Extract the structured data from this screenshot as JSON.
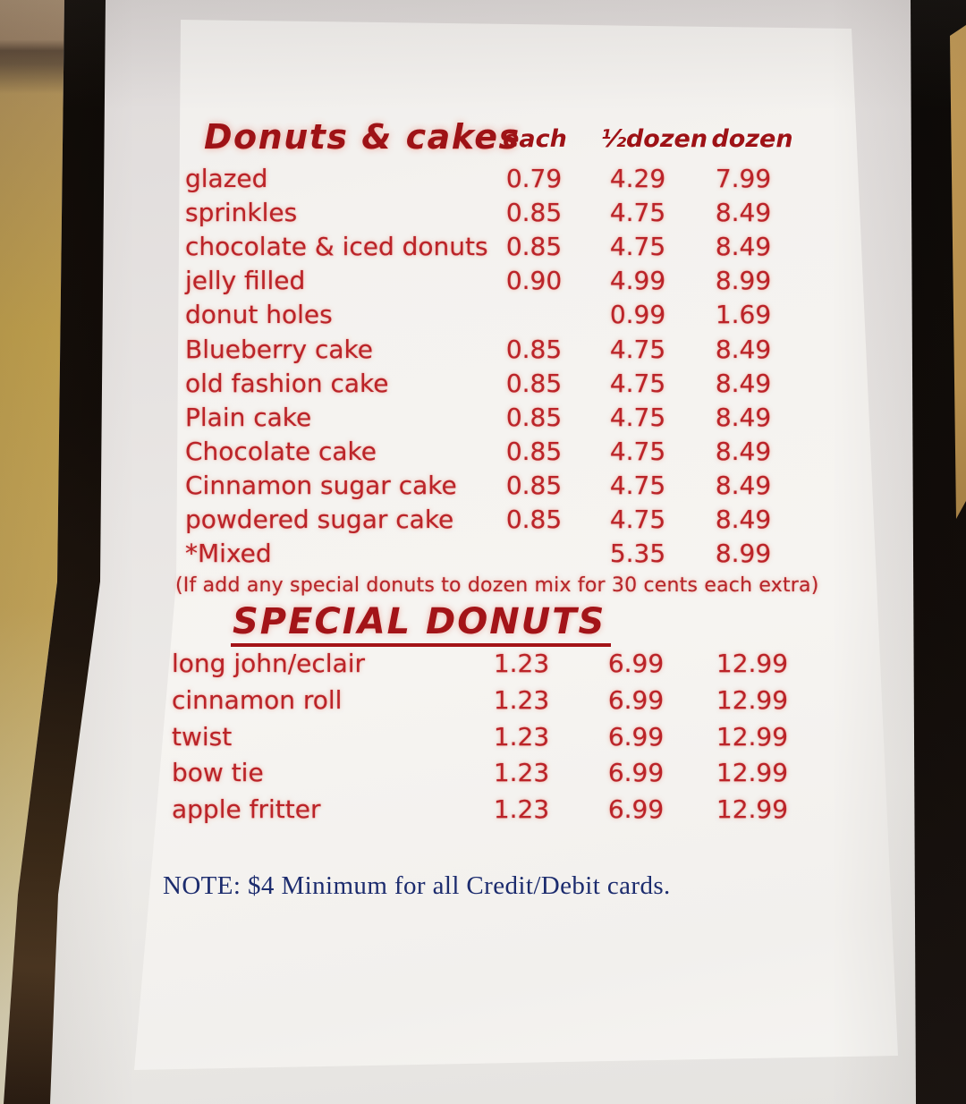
{
  "colors": {
    "menu_red": "#bb2328",
    "heading_red": "#9e1216",
    "note_blue": "#1c2c6e",
    "frame_dark": "#120c08",
    "wall_tan": "#c2a24e",
    "paper_white": "#f5f3f0"
  },
  "menu": {
    "title": "Donuts & cakes",
    "columns": [
      "each",
      "½dozen",
      "dozen"
    ],
    "items": [
      {
        "label": "glazed",
        "each": "0.79",
        "half_dozen": "4.29",
        "dozen": "7.99"
      },
      {
        "label": "sprinkles",
        "each": "0.85",
        "half_dozen": "4.75",
        "dozen": "8.49"
      },
      {
        "label": "chocolate & iced donuts",
        "each": "0.85",
        "half_dozen": "4.75",
        "dozen": "8.49"
      },
      {
        "label": "jelly filled",
        "each": "0.90",
        "half_dozen": "4.99",
        "dozen": "8.99"
      },
      {
        "label": "donut holes",
        "each": "",
        "half_dozen": "0.99",
        "dozen": "1.69"
      },
      {
        "label": "Blueberry cake",
        "each": "0.85",
        "half_dozen": "4.75",
        "dozen": "8.49"
      },
      {
        "label": "old fashion cake",
        "each": "0.85",
        "half_dozen": "4.75",
        "dozen": "8.49"
      },
      {
        "label": "Plain cake",
        "each": "0.85",
        "half_dozen": "4.75",
        "dozen": "8.49"
      },
      {
        "label": "Chocolate cake",
        "each": "0.85",
        "half_dozen": "4.75",
        "dozen": "8.49"
      },
      {
        "label": "Cinnamon sugar cake",
        "each": "0.85",
        "half_dozen": "4.75",
        "dozen": "8.49"
      },
      {
        "label": "powdered sugar cake",
        "each": "0.85",
        "half_dozen": "4.75",
        "dozen": "8.49"
      },
      {
        "label": "*Mixed",
        "each": "",
        "half_dozen": "5.35",
        "dozen": "8.99"
      }
    ],
    "mix_note": "(If add any special donuts to dozen mix for 30 cents each extra)",
    "special": {
      "title": "SPECIAL DONUTS",
      "items": [
        {
          "label": "long john/eclair",
          "each": "1.23",
          "half_dozen": "6.99",
          "dozen": "12.99"
        },
        {
          "label": "cinnamon roll",
          "each": "1.23",
          "half_dozen": "6.99",
          "dozen": "12.99"
        },
        {
          "label": "twist",
          "each": "1.23",
          "half_dozen": "6.99",
          "dozen": "12.99"
        },
        {
          "label": "bow tie",
          "each": "1.23",
          "half_dozen": "6.99",
          "dozen": "12.99"
        },
        {
          "label": "apple fritter",
          "each": "1.23",
          "half_dozen": "6.99",
          "dozen": "12.99"
        }
      ]
    },
    "card_note": "NOTE: $4 Minimum for all Credit/Debit cards."
  }
}
